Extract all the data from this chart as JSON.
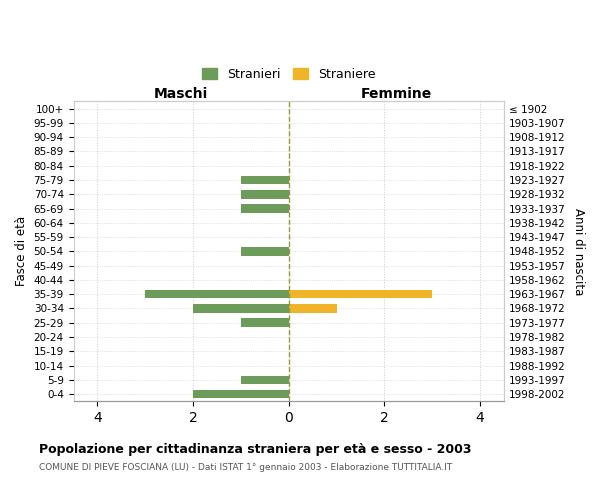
{
  "age_groups": [
    "100+",
    "95-99",
    "90-94",
    "85-89",
    "80-84",
    "75-79",
    "70-74",
    "65-69",
    "60-64",
    "55-59",
    "50-54",
    "45-49",
    "40-44",
    "35-39",
    "30-34",
    "25-29",
    "20-24",
    "15-19",
    "10-14",
    "5-9",
    "0-4"
  ],
  "birth_years": [
    "≤ 1902",
    "1903-1907",
    "1908-1912",
    "1913-1917",
    "1918-1922",
    "1923-1927",
    "1928-1932",
    "1933-1937",
    "1938-1942",
    "1943-1947",
    "1948-1952",
    "1953-1957",
    "1958-1962",
    "1963-1967",
    "1968-1972",
    "1973-1977",
    "1978-1982",
    "1983-1987",
    "1988-1992",
    "1993-1997",
    "1998-2002"
  ],
  "maschi": [
    0,
    0,
    0,
    0,
    0,
    1,
    1,
    1,
    0,
    0,
    1,
    0,
    0,
    3,
    2,
    1,
    0,
    0,
    0,
    1,
    2
  ],
  "femmine": [
    0,
    0,
    0,
    0,
    0,
    0,
    0,
    0,
    0,
    0,
    0,
    0,
    0,
    3,
    1,
    0,
    0,
    0,
    0,
    0,
    0
  ],
  "maschi_color": "#6d9b5a",
  "femmine_color": "#f0b429",
  "title": "Popolazione per cittadinanza straniera per età e sesso - 2003",
  "subtitle": "COMUNE DI PIEVE FOSCIANA (LU) - Dati ISTAT 1° gennaio 2003 - Elaborazione TUTTITALIA.IT",
  "header_left": "Maschi",
  "header_right": "Femmine",
  "ylabel_left": "Fasce di età",
  "ylabel_right": "Anni di nascita",
  "legend_maschi": "Stranieri",
  "legend_femmine": "Straniere",
  "xlim": 4.5,
  "xticks": [
    0,
    2,
    4
  ],
  "background_color": "#ffffff",
  "grid_color": "#cccccc",
  "centerline_color": "#999933"
}
